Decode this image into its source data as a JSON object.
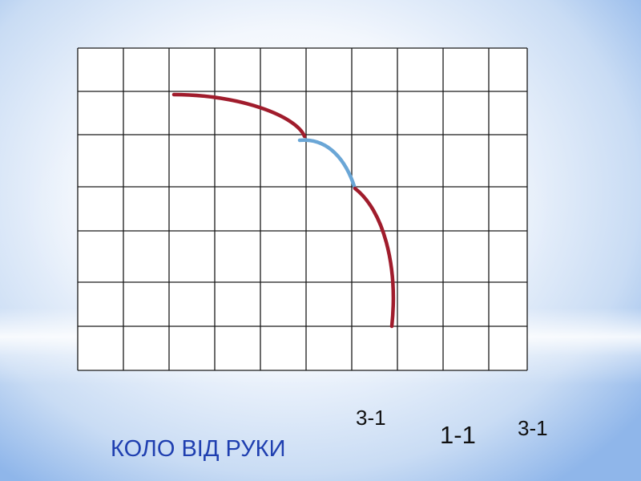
{
  "labels": {
    "left_score": "3-1",
    "center_score": "1-1",
    "right_score": "3-1"
  },
  "caption": "КОЛО ВІД РУКИ",
  "colors": {
    "arc_primary": "#a01c2c",
    "arc_secondary": "#6aa6d6",
    "grid_line": "#1a1a1a",
    "grid_fill": "#ffffff",
    "caption_text": "#1f3fb0"
  },
  "grid": {
    "columns": 10,
    "rows": 7
  }
}
